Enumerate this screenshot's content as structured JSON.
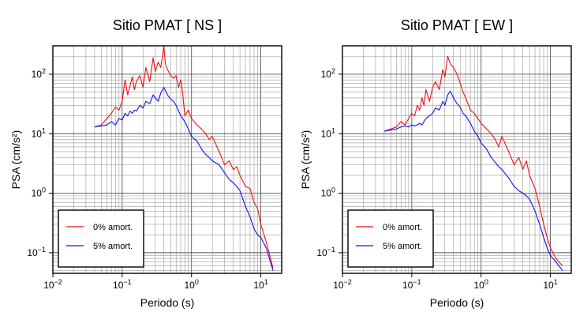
{
  "chart_data": [
    {
      "type": "line",
      "title": "Sitio PMAT [ NS ]",
      "xlabel": "Periodo (s)",
      "ylabel": "PSA (cm/s²)",
      "xscale": "log",
      "yscale": "log",
      "xlim": [
        0.01,
        20
      ],
      "ylim": [
        0.045,
        300
      ],
      "grid": true,
      "legend": "bottom-left",
      "x_ticks": [
        {
          "value": 0.01,
          "base": "10",
          "exp": "−2"
        },
        {
          "value": 0.1,
          "base": "10",
          "exp": "−1"
        },
        {
          "value": 1,
          "base": "10",
          "exp": "0"
        },
        {
          "value": 10,
          "base": "10",
          "exp": "1"
        }
      ],
      "y_ticks": [
        {
          "value": 0.1,
          "base": "10",
          "exp": "−1"
        },
        {
          "value": 1,
          "base": "10",
          "exp": "0"
        },
        {
          "value": 10,
          "base": "10",
          "exp": "1"
        },
        {
          "value": 100,
          "base": "10",
          "exp": "2"
        }
      ],
      "series": [
        {
          "name": "0% amort.",
          "color": "#ee1111",
          "x": [
            0.04,
            0.05,
            0.06,
            0.07,
            0.08,
            0.09,
            0.1,
            0.11,
            0.12,
            0.13,
            0.14,
            0.15,
            0.16,
            0.18,
            0.2,
            0.22,
            0.25,
            0.28,
            0.3,
            0.33,
            0.36,
            0.4,
            0.42,
            0.45,
            0.5,
            0.55,
            0.6,
            0.65,
            0.7,
            0.75,
            0.8,
            0.9,
            1.0,
            1.2,
            1.4,
            1.6,
            1.8,
            2.0,
            2.5,
            3.0,
            3.5,
            4.0,
            4.5,
            5.0,
            6.0,
            7.0,
            8.0,
            9.0,
            10.0,
            12.0,
            15.0
          ],
          "y": [
            13,
            14,
            18,
            22,
            28,
            25,
            35,
            80,
            45,
            65,
            90,
            55,
            75,
            95,
            60,
            130,
            75,
            190,
            110,
            160,
            130,
            300,
            150,
            120,
            95,
            85,
            95,
            60,
            80,
            45,
            20,
            25,
            18,
            14,
            12,
            10,
            8,
            9,
            5,
            3,
            3.5,
            2.5,
            2.8,
            2,
            1.3,
            1.2,
            0.7,
            0.55,
            0.3,
            0.15,
            0.055
          ]
        },
        {
          "name": "5% amort.",
          "color": "#1111ee",
          "x": [
            0.04,
            0.05,
            0.06,
            0.07,
            0.08,
            0.09,
            0.1,
            0.11,
            0.12,
            0.13,
            0.14,
            0.15,
            0.16,
            0.18,
            0.2,
            0.22,
            0.25,
            0.28,
            0.3,
            0.33,
            0.36,
            0.4,
            0.45,
            0.5,
            0.55,
            0.6,
            0.7,
            0.8,
            0.9,
            1.0,
            1.2,
            1.4,
            1.6,
            1.8,
            2.0,
            2.5,
            3.0,
            3.5,
            4.0,
            4.5,
            5.0,
            6.0,
            7.0,
            8.0,
            9.0,
            10.0,
            12.0,
            15.0
          ],
          "y": [
            13,
            13.5,
            14,
            16,
            14,
            18,
            17,
            22,
            20,
            24,
            22,
            25,
            24,
            30,
            27,
            35,
            32,
            45,
            40,
            35,
            48,
            60,
            45,
            38,
            35,
            30,
            20,
            16,
            12,
            9,
            7.5,
            5.5,
            4.5,
            4,
            3.5,
            3,
            2.2,
            1.7,
            1.5,
            1.3,
            1.1,
            0.6,
            0.4,
            0.25,
            0.2,
            0.18,
            0.12,
            0.05
          ]
        }
      ]
    },
    {
      "type": "line",
      "title": "Sitio PMAT [ EW ]",
      "xlabel": "Periodo (s)",
      "ylabel": "PSA (cm/s²)",
      "xscale": "log",
      "yscale": "log",
      "xlim": [
        0.01,
        20
      ],
      "ylim": [
        0.045,
        300
      ],
      "grid": true,
      "legend": "bottom-left",
      "x_ticks": [
        {
          "value": 0.01,
          "base": "10",
          "exp": "−2"
        },
        {
          "value": 0.1,
          "base": "10",
          "exp": "−1"
        },
        {
          "value": 1,
          "base": "10",
          "exp": "0"
        },
        {
          "value": 10,
          "base": "10",
          "exp": "1"
        }
      ],
      "y_ticks": [
        {
          "value": 0.1,
          "base": "10",
          "exp": "−1"
        },
        {
          "value": 1,
          "base": "10",
          "exp": "0"
        },
        {
          "value": 10,
          "base": "10",
          "exp": "1"
        },
        {
          "value": 100,
          "base": "10",
          "exp": "2"
        }
      ],
      "series": [
        {
          "name": "0% amort.",
          "color": "#ee1111",
          "x": [
            0.04,
            0.05,
            0.06,
            0.07,
            0.08,
            0.09,
            0.1,
            0.11,
            0.12,
            0.13,
            0.14,
            0.15,
            0.16,
            0.18,
            0.2,
            0.22,
            0.25,
            0.28,
            0.3,
            0.33,
            0.36,
            0.4,
            0.45,
            0.5,
            0.55,
            0.6,
            0.7,
            0.8,
            0.9,
            1.0,
            1.2,
            1.4,
            1.6,
            1.8,
            2.0,
            2.5,
            3.0,
            3.5,
            4.0,
            4.5,
            5.0,
            6.0,
            7.0,
            8.0,
            9.0,
            10.0,
            12.0,
            15.0
          ],
          "y": [
            11,
            12,
            13,
            16,
            14,
            18,
            22,
            20,
            30,
            25,
            40,
            30,
            55,
            35,
            60,
            75,
            55,
            120,
            90,
            200,
            150,
            130,
            100,
            70,
            50,
            40,
            25,
            22,
            18,
            15,
            12,
            10,
            8,
            6,
            9,
            5,
            3,
            4,
            2.5,
            3.5,
            2,
            1.2,
            0.6,
            0.3,
            0.18,
            0.12,
            0.08,
            0.06
          ]
        },
        {
          "name": "5% amort.",
          "color": "#1111ee",
          "x": [
            0.04,
            0.05,
            0.06,
            0.07,
            0.08,
            0.09,
            0.1,
            0.11,
            0.12,
            0.13,
            0.14,
            0.15,
            0.16,
            0.18,
            0.2,
            0.22,
            0.25,
            0.28,
            0.3,
            0.33,
            0.36,
            0.4,
            0.45,
            0.5,
            0.55,
            0.6,
            0.7,
            0.8,
            0.9,
            1.0,
            1.2,
            1.4,
            1.6,
            1.8,
            2.0,
            2.5,
            3.0,
            3.5,
            4.0,
            4.5,
            5.0,
            6.0,
            7.0,
            8.0,
            9.0,
            10.0,
            12.0,
            15.0
          ],
          "y": [
            11,
            11.5,
            12,
            13,
            13.5,
            13,
            14,
            13.5,
            14,
            15,
            14,
            16,
            18,
            20,
            22,
            27,
            25,
            35,
            30,
            45,
            52,
            40,
            32,
            28,
            22,
            20,
            15,
            11,
            9,
            7,
            5.5,
            4,
            3.3,
            2.8,
            2.5,
            1.8,
            1.3,
            1.1,
            1.0,
            0.9,
            0.8,
            0.5,
            0.3,
            0.18,
            0.12,
            0.09,
            0.07,
            0.05
          ]
        }
      ]
    }
  ]
}
